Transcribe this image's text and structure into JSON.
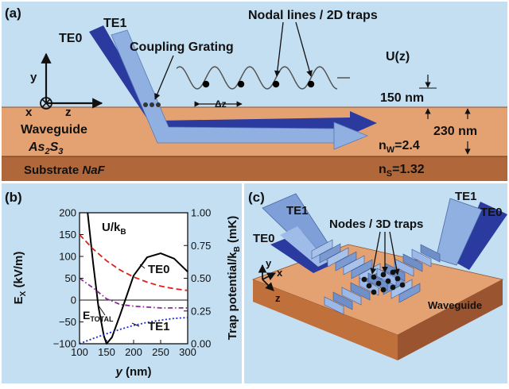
{
  "panel_a": {
    "tag": "(a)",
    "te0": "TE0",
    "te1": "TE1",
    "coupling_grating": "Coupling Grating",
    "nodal_lines": "Nodal lines / 2D traps",
    "uz": "U(z)",
    "axis_y": "y",
    "axis_x": "x",
    "axis_z": "z",
    "delta_z": "Δz",
    "dim_150": "150 nm",
    "dim_230": "230 nm",
    "waveguide": "Waveguide",
    "waveguide_material_main": "As",
    "waveguide_material_sub1": "2",
    "waveguide_material_mid": "S",
    "waveguide_material_sub2": "3",
    "substrate_prefix": "Substrate",
    "substrate_material": "NaF",
    "nw_main": "n",
    "nw_sub": "W",
    "nw_value": "=2.4",
    "ns_main": "n",
    "ns_sub": "S",
    "ns_value": "=1.32",
    "colors": {
      "air": "#c4dff2",
      "waveguide": "#e4a273",
      "substrate": "#b0683a",
      "beam_te0": "#2a3a9e",
      "beam_te1": "#8fb0e0"
    }
  },
  "panel_b": {
    "tag": "(b)",
    "ylabel_main": "E",
    "ylabel_sub": "X",
    "ylabel_unit": " (kV/m)",
    "y2label_main": "Trap potential/k",
    "y2label_sub": "B",
    "y2label_unit": " (mK)",
    "xlabel_main": "y",
    "xlabel_unit": " (nm)",
    "label_u_main": "U/k",
    "label_u_sub": "B",
    "label_te0": "TE0",
    "label_te1": "TE1",
    "label_etotal_main": "E",
    "label_etotal_sub": "TOTAL"
  },
  "chart_data": {
    "type": "line",
    "xlabel": "y (nm)",
    "ylabel": "E_X (kV/m)",
    "y2label": "Trap potential/k_B (mK)",
    "xlim": [
      100,
      300
    ],
    "ylim": [
      -100,
      200
    ],
    "y2lim": [
      0,
      1
    ],
    "xticks": [
      "100",
      "150",
      "200",
      "250",
      "300"
    ],
    "yticks": [
      "−100",
      "−50",
      "0",
      "50",
      "100",
      "150",
      "200"
    ],
    "y2ticks": [
      "0.00",
      "0.25",
      "0.50",
      "0.75",
      "1.00"
    ],
    "grid": false,
    "series": [
      {
        "name": "U/k_B",
        "axis": "right",
        "style": "solid",
        "color": "#000000",
        "x": [
          115,
          125,
          135,
          145,
          150,
          160,
          175,
          200,
          225,
          250,
          275,
          300
        ],
        "y": [
          1.0,
          0.62,
          0.28,
          0.06,
          0.0,
          0.05,
          0.22,
          0.52,
          0.66,
          0.69,
          0.65,
          0.55
        ]
      },
      {
        "name": "TE0",
        "axis": "left",
        "style": "dashed",
        "color": "#e0201a",
        "x": [
          100,
          125,
          150,
          175,
          200,
          225,
          250,
          275,
          300
        ],
        "y": [
          150,
          117,
          90,
          69,
          53,
          41,
          32,
          26,
          22
        ]
      },
      {
        "name": "E_TOTAL",
        "axis": "left",
        "style": "dashdot",
        "color": "#8a2a9a",
        "x": [
          100,
          125,
          150,
          175,
          200,
          250,
          300
        ],
        "y": [
          50,
          28,
          3,
          -10,
          -14,
          -18,
          -18
        ]
      },
      {
        "name": "TE1",
        "axis": "left",
        "style": "dotted",
        "color": "#1a2ad8",
        "x": [
          100,
          125,
          150,
          175,
          200,
          225,
          250,
          275,
          300
        ],
        "y": [
          -100,
          -88,
          -77,
          -67,
          -58,
          -51,
          -46,
          -42,
          -40
        ]
      }
    ]
  },
  "panel_c": {
    "tag": "(c)",
    "te1_left": "TE1",
    "te0_left": "TE0",
    "te1_right": "TE1",
    "te0_right": "TE0",
    "nodes": "Nodes / 3D traps",
    "waveguide": "Waveguide",
    "axis_y": "y",
    "axis_x": "x",
    "axis_z": "z"
  }
}
